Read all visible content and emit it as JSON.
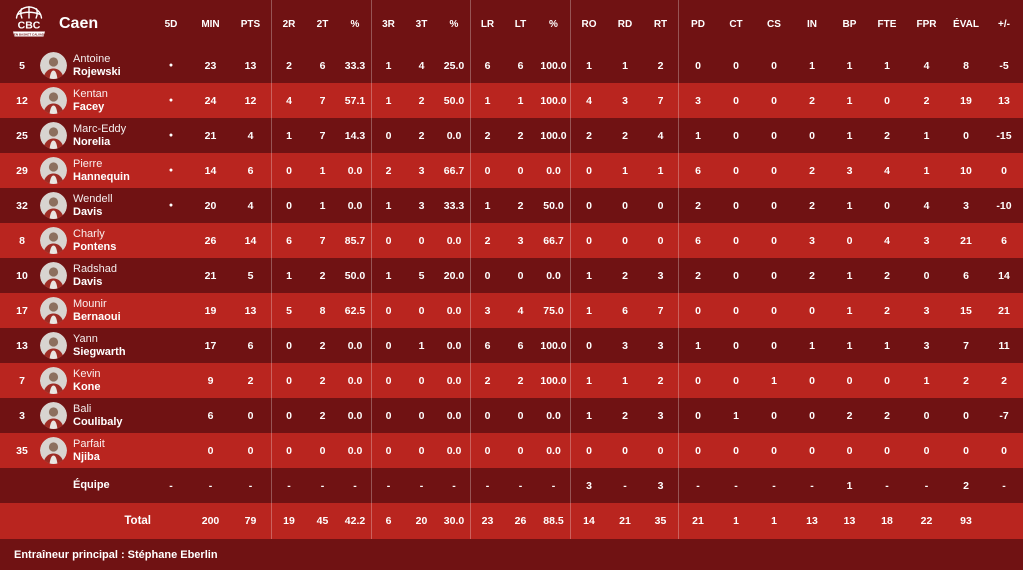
{
  "team": {
    "name": "Caen",
    "logo_acronym": "CBC",
    "logo_banner": "CAEN BASKET CALVADOS"
  },
  "columns": [
    "5D",
    "MIN",
    "PTS",
    "2R",
    "2T",
    "%",
    "3R",
    "3T",
    "%",
    "LR",
    "LT",
    "%",
    "RO",
    "RD",
    "RT",
    "PD",
    "CT",
    "CS",
    "IN",
    "BP",
    "FTE",
    "FPR",
    "ÉVAL",
    "+/-"
  ],
  "players": [
    {
      "number": "5",
      "first_name": "Antoine",
      "last_name": "Rojewski",
      "cells": [
        "●",
        "23",
        "13",
        "2",
        "6",
        "33.3",
        "1",
        "4",
        "25.0",
        "6",
        "6",
        "100.0",
        "1",
        "1",
        "2",
        "0",
        "0",
        "0",
        "1",
        "1",
        "1",
        "4",
        "8",
        "-5"
      ]
    },
    {
      "number": "12",
      "first_name": "Kentan",
      "last_name": "Facey",
      "cells": [
        "●",
        "24",
        "12",
        "4",
        "7",
        "57.1",
        "1",
        "2",
        "50.0",
        "1",
        "1",
        "100.0",
        "4",
        "3",
        "7",
        "3",
        "0",
        "0",
        "2",
        "1",
        "0",
        "2",
        "19",
        "13"
      ]
    },
    {
      "number": "25",
      "first_name": "Marc-Eddy",
      "last_name": "Norelia",
      "cells": [
        "●",
        "21",
        "4",
        "1",
        "7",
        "14.3",
        "0",
        "2",
        "0.0",
        "2",
        "2",
        "100.0",
        "2",
        "2",
        "4",
        "1",
        "0",
        "0",
        "0",
        "1",
        "2",
        "1",
        "0",
        "-15"
      ]
    },
    {
      "number": "29",
      "first_name": "Pierre",
      "last_name": "Hannequin",
      "cells": [
        "●",
        "14",
        "6",
        "0",
        "1",
        "0.0",
        "2",
        "3",
        "66.7",
        "0",
        "0",
        "0.0",
        "0",
        "1",
        "1",
        "6",
        "0",
        "0",
        "2",
        "3",
        "4",
        "1",
        "10",
        "0"
      ]
    },
    {
      "number": "32",
      "first_name": "Wendell",
      "last_name": "Davis",
      "cells": [
        "●",
        "20",
        "4",
        "0",
        "1",
        "0.0",
        "1",
        "3",
        "33.3",
        "1",
        "2",
        "50.0",
        "0",
        "0",
        "0",
        "2",
        "0",
        "0",
        "2",
        "1",
        "0",
        "4",
        "3",
        "-10"
      ]
    },
    {
      "number": "8",
      "first_name": "Charly",
      "last_name": "Pontens",
      "cells": [
        "",
        "26",
        "14",
        "6",
        "7",
        "85.7",
        "0",
        "0",
        "0.0",
        "2",
        "3",
        "66.7",
        "0",
        "0",
        "0",
        "6",
        "0",
        "0",
        "3",
        "0",
        "4",
        "3",
        "21",
        "6"
      ]
    },
    {
      "number": "10",
      "first_name": "Radshad",
      "last_name": "Davis",
      "cells": [
        "",
        "21",
        "5",
        "1",
        "2",
        "50.0",
        "1",
        "5",
        "20.0",
        "0",
        "0",
        "0.0",
        "1",
        "2",
        "3",
        "2",
        "0",
        "0",
        "2",
        "1",
        "2",
        "0",
        "6",
        "14"
      ]
    },
    {
      "number": "17",
      "first_name": "Mounir",
      "last_name": "Bernaoui",
      "cells": [
        "",
        "19",
        "13",
        "5",
        "8",
        "62.5",
        "0",
        "0",
        "0.0",
        "3",
        "4",
        "75.0",
        "1",
        "6",
        "7",
        "0",
        "0",
        "0",
        "0",
        "1",
        "2",
        "3",
        "15",
        "21"
      ]
    },
    {
      "number": "13",
      "first_name": "Yann",
      "last_name": "Siegwarth",
      "cells": [
        "",
        "17",
        "6",
        "0",
        "2",
        "0.0",
        "0",
        "1",
        "0.0",
        "6",
        "6",
        "100.0",
        "0",
        "3",
        "3",
        "1",
        "0",
        "0",
        "1",
        "1",
        "1",
        "3",
        "7",
        "11"
      ]
    },
    {
      "number": "7",
      "first_name": "Kevin",
      "last_name": "Kone",
      "cells": [
        "",
        "9",
        "2",
        "0",
        "2",
        "0.0",
        "0",
        "0",
        "0.0",
        "2",
        "2",
        "100.0",
        "1",
        "1",
        "2",
        "0",
        "0",
        "1",
        "0",
        "0",
        "0",
        "1",
        "2",
        "2"
      ]
    },
    {
      "number": "3",
      "first_name": "Bali",
      "last_name": "Coulibaly",
      "cells": [
        "",
        "6",
        "0",
        "0",
        "2",
        "0.0",
        "0",
        "0",
        "0.0",
        "0",
        "0",
        "0.0",
        "1",
        "2",
        "3",
        "0",
        "1",
        "0",
        "0",
        "2",
        "2",
        "0",
        "0",
        "-7"
      ]
    },
    {
      "number": "35",
      "first_name": "Parfait",
      "last_name": "Njiba",
      "cells": [
        "",
        "0",
        "0",
        "0",
        "0",
        "0.0",
        "0",
        "0",
        "0.0",
        "0",
        "0",
        "0.0",
        "0",
        "0",
        "0",
        "0",
        "0",
        "0",
        "0",
        "0",
        "0",
        "0",
        "0",
        "0"
      ]
    }
  ],
  "team_row": {
    "label": "Équipe",
    "cells": [
      "-",
      "-",
      "-",
      "-",
      "-",
      "-",
      "-",
      "-",
      "-",
      "-",
      "-",
      "-",
      "3",
      "-",
      "3",
      "-",
      "-",
      "-",
      "-",
      "1",
      "-",
      "-",
      "2",
      "-"
    ]
  },
  "total_row": {
    "label": "Total",
    "cells": [
      "",
      "200",
      "79",
      "19",
      "45",
      "42.2",
      "6",
      "20",
      "30.0",
      "23",
      "26",
      "88.5",
      "14",
      "21",
      "35",
      "21",
      "1",
      "1",
      "13",
      "13",
      "18",
      "22",
      "93",
      ""
    ]
  },
  "footer": {
    "coach": "Entraîneur principal : Stéphane Eberlin"
  },
  "colors": {
    "row_light": "#b9251f",
    "row_dark": "#701213",
    "divider": "rgba(255,255,255,0.28)"
  }
}
